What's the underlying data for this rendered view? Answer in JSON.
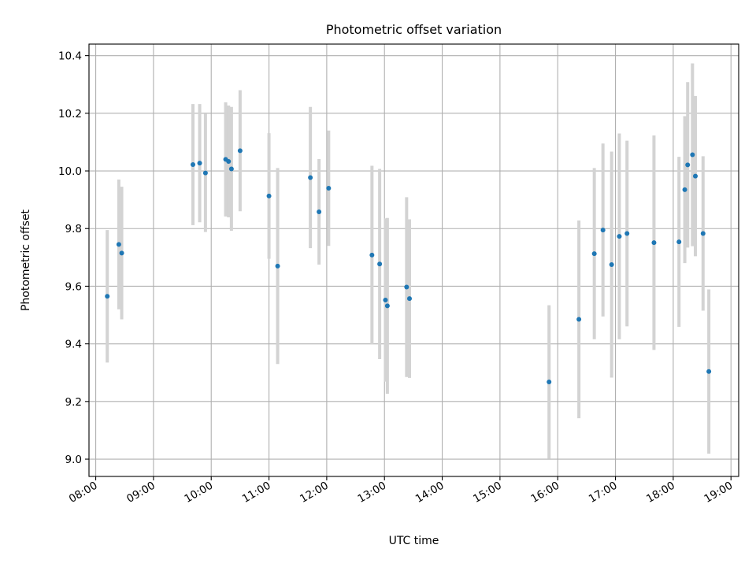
{
  "chart_data": {
    "type": "scatter",
    "title": "Photometric offset variation",
    "xlabel": "UTC time",
    "ylabel": "Photometric offset",
    "x_is_time": true,
    "xlim": [
      "07:53",
      "19:08"
    ],
    "ylim": [
      8.94,
      10.44
    ],
    "xticks": [
      "08:00",
      "09:00",
      "10:00",
      "11:00",
      "12:00",
      "13:00",
      "14:00",
      "15:00",
      "16:00",
      "17:00",
      "18:00",
      "19:00"
    ],
    "yticks": [
      "9.0",
      "9.2",
      "9.4",
      "9.6",
      "9.8",
      "10.0",
      "10.2",
      "10.4"
    ],
    "grid": true,
    "legend": "none",
    "colors": {
      "point": "#1f77b4",
      "errorbar": "#d3d3d3",
      "grid": "#b0b0b0"
    },
    "series": [
      {
        "points": [
          {
            "t": "08:12",
            "y": 9.565,
            "err": 0.23
          },
          {
            "t": "08:24",
            "y": 9.745,
            "err": 0.225
          },
          {
            "t": "08:27",
            "y": 9.715,
            "err": 0.23
          },
          {
            "t": "09:41",
            "y": 10.022,
            "err": 0.21
          },
          {
            "t": "09:48",
            "y": 10.027,
            "err": 0.205
          },
          {
            "t": "09:54",
            "y": 9.993,
            "err": 0.205
          },
          {
            "t": "10:15",
            "y": 10.04,
            "err": 0.198
          },
          {
            "t": "10:18",
            "y": 10.033,
            "err": 0.194
          },
          {
            "t": "10:21",
            "y": 10.007,
            "err": 0.215
          },
          {
            "t": "10:30",
            "y": 10.07,
            "err": 0.21
          },
          {
            "t": "11:00",
            "y": 9.913,
            "err": 0.218
          },
          {
            "t": "11:09",
            "y": 9.67,
            "err": 0.34
          },
          {
            "t": "11:43",
            "y": 9.977,
            "err": 0.245
          },
          {
            "t": "11:52",
            "y": 9.858,
            "err": 0.183
          },
          {
            "t": "12:02",
            "y": 9.94,
            "err": 0.2
          },
          {
            "t": "12:47",
            "y": 9.708,
            "err": 0.31
          },
          {
            "t": "12:55",
            "y": 9.677,
            "err": 0.33
          },
          {
            "t": "13:01",
            "y": 9.552,
            "err": 0.283
          },
          {
            "t": "13:03",
            "y": 9.532,
            "err": 0.305
          },
          {
            "t": "13:23",
            "y": 9.597,
            "err": 0.312
          },
          {
            "t": "13:26",
            "y": 9.557,
            "err": 0.275
          },
          {
            "t": "15:51",
            "y": 9.268,
            "err": 0.266
          },
          {
            "t": "16:22",
            "y": 9.485,
            "err": 0.343
          },
          {
            "t": "16:38",
            "y": 9.713,
            "err": 0.297
          },
          {
            "t": "16:47",
            "y": 9.795,
            "err": 0.3
          },
          {
            "t": "16:56",
            "y": 9.675,
            "err": 0.392
          },
          {
            "t": "17:04",
            "y": 9.773,
            "err": 0.357
          },
          {
            "t": "17:12",
            "y": 9.783,
            "err": 0.322
          },
          {
            "t": "17:40",
            "y": 9.751,
            "err": 0.372
          },
          {
            "t": "18:06",
            "y": 9.754,
            "err": 0.295
          },
          {
            "t": "18:12",
            "y": 9.935,
            "err": 0.255
          },
          {
            "t": "18:15",
            "y": 10.021,
            "err": 0.287
          },
          {
            "t": "18:20",
            "y": 10.056,
            "err": 0.317
          },
          {
            "t": "18:23",
            "y": 9.982,
            "err": 0.278
          },
          {
            "t": "18:31",
            "y": 9.783,
            "err": 0.268
          },
          {
            "t": "18:37",
            "y": 9.304,
            "err": 0.285
          }
        ]
      }
    ]
  }
}
